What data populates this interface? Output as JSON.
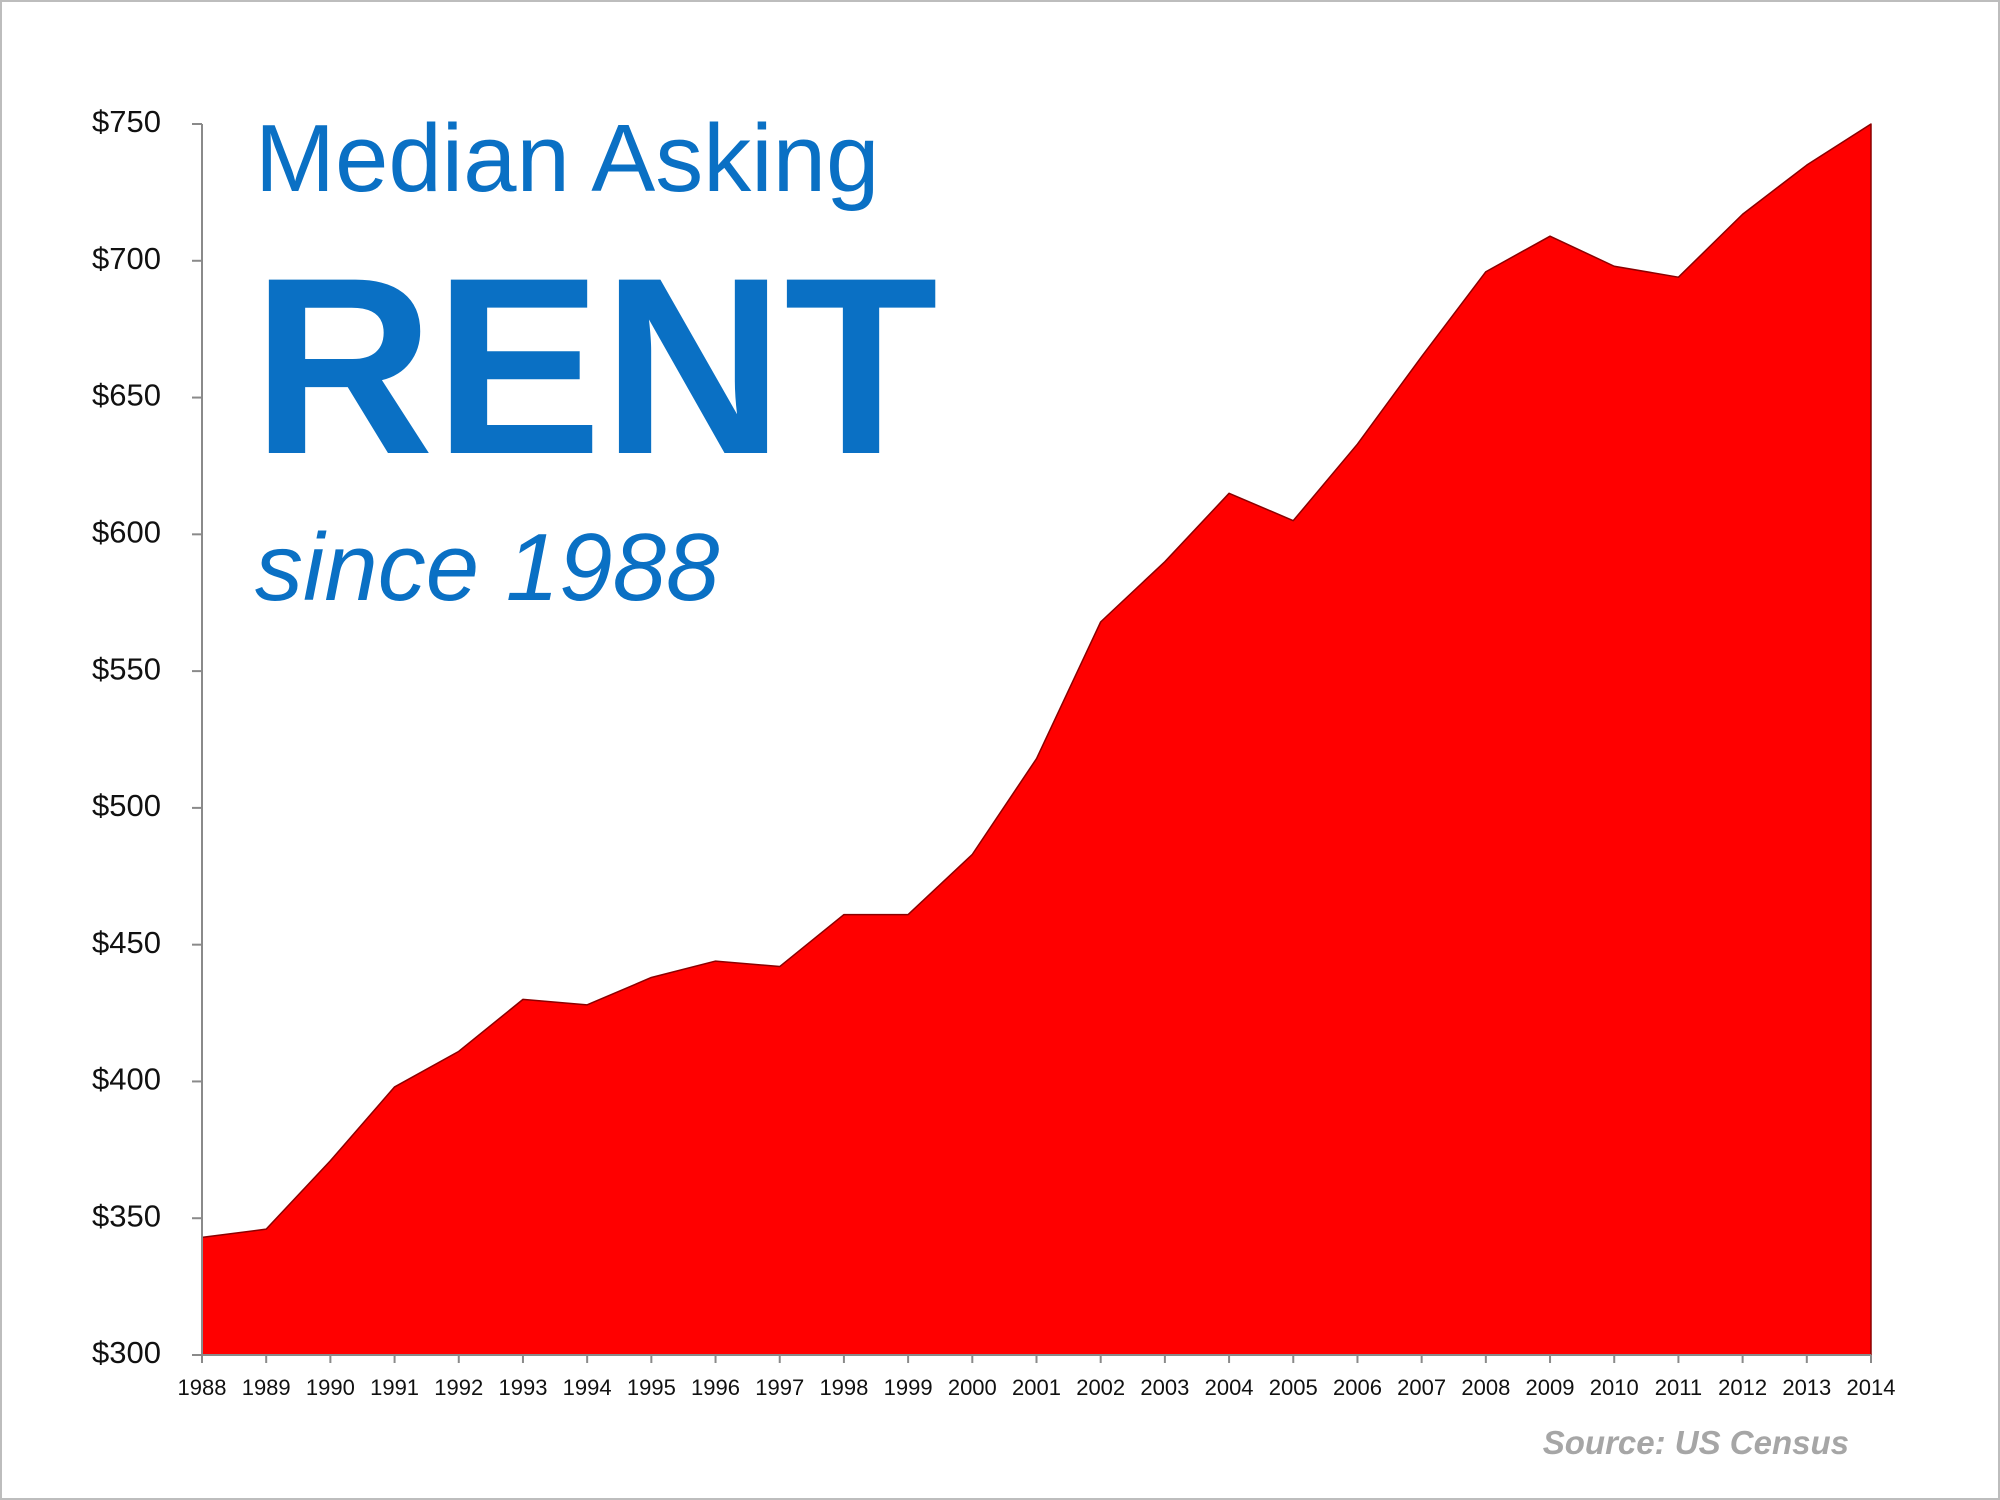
{
  "chart_data": {
    "type": "area",
    "title": "Median Asking",
    "headline": "RENT",
    "subtitle": "since 1988",
    "source": "Source: US Census",
    "categories": [
      "1988",
      "1989",
      "1990",
      "1991",
      "1992",
      "1993",
      "1994",
      "1995",
      "1996",
      "1997",
      "1998",
      "1999",
      "2000",
      "2001",
      "2002",
      "2003",
      "2004",
      "2005",
      "2006",
      "2007",
      "2008",
      "2009",
      "2010",
      "2011",
      "2012",
      "2013",
      "2014"
    ],
    "values": [
      343,
      346,
      371,
      398,
      411,
      430,
      428,
      438,
      444,
      442,
      461,
      461,
      483,
      518,
      568,
      590,
      615,
      605,
      633,
      665,
      696,
      709,
      698,
      694,
      717,
      735,
      750
    ],
    "color": "#ff0000",
    "ylim": [
      300,
      750
    ],
    "yticks": [
      {
        "value": 300,
        "label": "$300"
      },
      {
        "value": 350,
        "label": "$350"
      },
      {
        "value": 400,
        "label": "$400"
      },
      {
        "value": 450,
        "label": "$450"
      },
      {
        "value": 500,
        "label": "$500"
      },
      {
        "value": 550,
        "label": "$550"
      },
      {
        "value": 600,
        "label": "$600"
      },
      {
        "value": 650,
        "label": "$650"
      },
      {
        "value": 700,
        "label": "$700"
      },
      {
        "value": 750,
        "label": "$750"
      }
    ],
    "grid": false
  }
}
